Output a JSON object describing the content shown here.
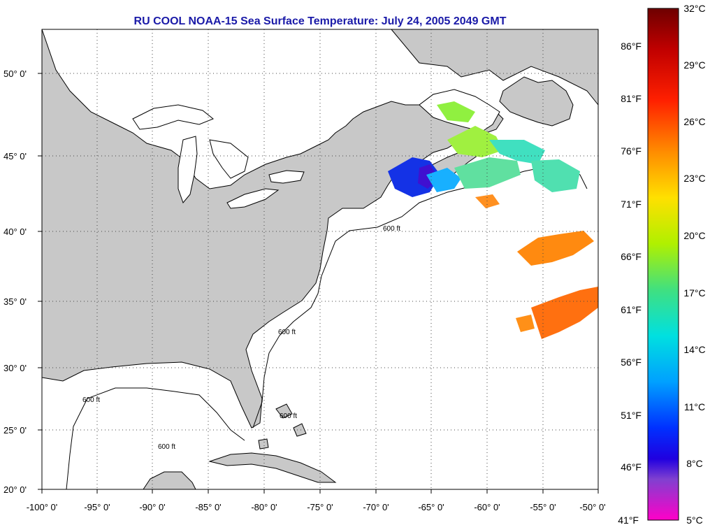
{
  "title": "RU COOL  NOAA-15  Sea Surface Temperature:  July 24, 2005 2049 GMT",
  "lon_labels": [
    "-100° 0'",
    "-95° 0'",
    "-90° 0'",
    "-85° 0'",
    "-80° 0'",
    "-75° 0'",
    "-70° 0'",
    "-65° 0'",
    "-60° 0'",
    "-55° 0'",
    "-50° 0'"
  ],
  "lat_labels": [
    "20° 0'",
    "25° 0'",
    "30° 0'",
    "35° 0'",
    "40° 0'",
    "45° 0'",
    "50° 0'"
  ],
  "contour_label": "600 ft",
  "colorbar": {
    "celsius_labels": [
      "32°C",
      "29°C",
      "26°C",
      "23°C",
      "20°C",
      "17°C",
      "14°C",
      "11°C",
      "8°C",
      "5°C"
    ],
    "fahrenheit_labels": [
      "86°F",
      "81°F",
      "76°F",
      "71°F",
      "66°F",
      "61°F",
      "56°F",
      "51°F",
      "46°F",
      "41°F"
    ]
  },
  "colors": {
    "title": "#1a1aa8",
    "land": "#c8c8c8",
    "ocean": "#ffffff"
  }
}
